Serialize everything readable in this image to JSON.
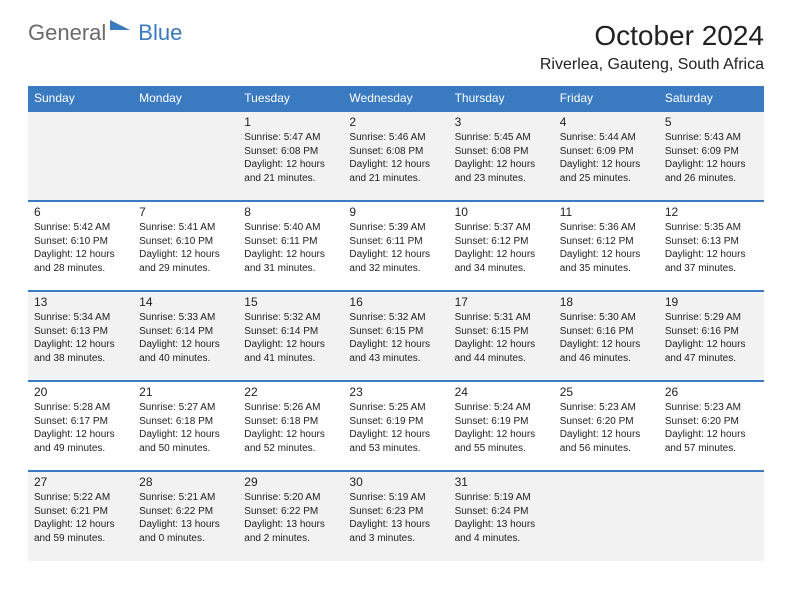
{
  "logo": {
    "general": "General",
    "blue": "Blue"
  },
  "header": {
    "month_title": "October 2024",
    "location": "Riverlea, Gauteng, South Africa"
  },
  "style": {
    "accent_color": "#3a7ac0",
    "alt_row_bg": "#f2f2f2",
    "row_bg": "#ffffff",
    "header_text_color": "#ffffff",
    "body_text_color": "#222222",
    "logo_gray": "#6a6a6a",
    "month_title_fontsize": 28,
    "location_fontsize": 16,
    "dayheader_fontsize": 12,
    "daynum_fontsize": 12,
    "detail_fontsize": 10
  },
  "calendar": {
    "day_headers": [
      "Sunday",
      "Monday",
      "Tuesday",
      "Wednesday",
      "Thursday",
      "Friday",
      "Saturday"
    ],
    "weeks": [
      [
        null,
        null,
        {
          "n": "1",
          "sr": "5:47 AM",
          "ss": "6:08 PM",
          "dl": "12 hours and 21 minutes."
        },
        {
          "n": "2",
          "sr": "5:46 AM",
          "ss": "6:08 PM",
          "dl": "12 hours and 21 minutes."
        },
        {
          "n": "3",
          "sr": "5:45 AM",
          "ss": "6:08 PM",
          "dl": "12 hours and 23 minutes."
        },
        {
          "n": "4",
          "sr": "5:44 AM",
          "ss": "6:09 PM",
          "dl": "12 hours and 25 minutes."
        },
        {
          "n": "5",
          "sr": "5:43 AM",
          "ss": "6:09 PM",
          "dl": "12 hours and 26 minutes."
        }
      ],
      [
        {
          "n": "6",
          "sr": "5:42 AM",
          "ss": "6:10 PM",
          "dl": "12 hours and 28 minutes."
        },
        {
          "n": "7",
          "sr": "5:41 AM",
          "ss": "6:10 PM",
          "dl": "12 hours and 29 minutes."
        },
        {
          "n": "8",
          "sr": "5:40 AM",
          "ss": "6:11 PM",
          "dl": "12 hours and 31 minutes."
        },
        {
          "n": "9",
          "sr": "5:39 AM",
          "ss": "6:11 PM",
          "dl": "12 hours and 32 minutes."
        },
        {
          "n": "10",
          "sr": "5:37 AM",
          "ss": "6:12 PM",
          "dl": "12 hours and 34 minutes."
        },
        {
          "n": "11",
          "sr": "5:36 AM",
          "ss": "6:12 PM",
          "dl": "12 hours and 35 minutes."
        },
        {
          "n": "12",
          "sr": "5:35 AM",
          "ss": "6:13 PM",
          "dl": "12 hours and 37 minutes."
        }
      ],
      [
        {
          "n": "13",
          "sr": "5:34 AM",
          "ss": "6:13 PM",
          "dl": "12 hours and 38 minutes."
        },
        {
          "n": "14",
          "sr": "5:33 AM",
          "ss": "6:14 PM",
          "dl": "12 hours and 40 minutes."
        },
        {
          "n": "15",
          "sr": "5:32 AM",
          "ss": "6:14 PM",
          "dl": "12 hours and 41 minutes."
        },
        {
          "n": "16",
          "sr": "5:32 AM",
          "ss": "6:15 PM",
          "dl": "12 hours and 43 minutes."
        },
        {
          "n": "17",
          "sr": "5:31 AM",
          "ss": "6:15 PM",
          "dl": "12 hours and 44 minutes."
        },
        {
          "n": "18",
          "sr": "5:30 AM",
          "ss": "6:16 PM",
          "dl": "12 hours and 46 minutes."
        },
        {
          "n": "19",
          "sr": "5:29 AM",
          "ss": "6:16 PM",
          "dl": "12 hours and 47 minutes."
        }
      ],
      [
        {
          "n": "20",
          "sr": "5:28 AM",
          "ss": "6:17 PM",
          "dl": "12 hours and 49 minutes."
        },
        {
          "n": "21",
          "sr": "5:27 AM",
          "ss": "6:18 PM",
          "dl": "12 hours and 50 minutes."
        },
        {
          "n": "22",
          "sr": "5:26 AM",
          "ss": "6:18 PM",
          "dl": "12 hours and 52 minutes."
        },
        {
          "n": "23",
          "sr": "5:25 AM",
          "ss": "6:19 PM",
          "dl": "12 hours and 53 minutes."
        },
        {
          "n": "24",
          "sr": "5:24 AM",
          "ss": "6:19 PM",
          "dl": "12 hours and 55 minutes."
        },
        {
          "n": "25",
          "sr": "5:23 AM",
          "ss": "6:20 PM",
          "dl": "12 hours and 56 minutes."
        },
        {
          "n": "26",
          "sr": "5:23 AM",
          "ss": "6:20 PM",
          "dl": "12 hours and 57 minutes."
        }
      ],
      [
        {
          "n": "27",
          "sr": "5:22 AM",
          "ss": "6:21 PM",
          "dl": "12 hours and 59 minutes."
        },
        {
          "n": "28",
          "sr": "5:21 AM",
          "ss": "6:22 PM",
          "dl": "13 hours and 0 minutes."
        },
        {
          "n": "29",
          "sr": "5:20 AM",
          "ss": "6:22 PM",
          "dl": "13 hours and 2 minutes."
        },
        {
          "n": "30",
          "sr": "5:19 AM",
          "ss": "6:23 PM",
          "dl": "13 hours and 3 minutes."
        },
        {
          "n": "31",
          "sr": "5:19 AM",
          "ss": "6:24 PM",
          "dl": "13 hours and 4 minutes."
        },
        null,
        null
      ]
    ],
    "labels": {
      "sunrise": "Sunrise:",
      "sunset": "Sunset:",
      "daylight": "Daylight:"
    }
  }
}
